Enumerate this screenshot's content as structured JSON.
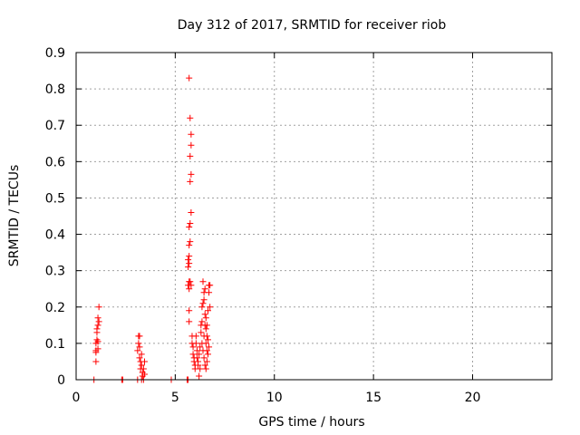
{
  "chart_data": {
    "type": "scatter",
    "title": "Day 312 of 2017, SRMTID for receiver riob",
    "xlabel": "GPS time / hours",
    "ylabel": "SRMTID / TECUs",
    "xlim": [
      0,
      24
    ],
    "ylim": [
      0,
      0.9
    ],
    "xticks": [
      0,
      5,
      10,
      15,
      20
    ],
    "xtick_labels": [
      "0",
      "5",
      "10",
      "15",
      "20"
    ],
    "yticks": [
      0,
      0.1,
      0.2,
      0.3,
      0.4,
      0.5,
      0.6,
      0.7,
      0.8,
      0.9
    ],
    "ytick_labels": [
      "0",
      "0.1",
      "0.2",
      "0.3",
      "0.4",
      "0.5",
      "0.6",
      "0.7",
      "0.8",
      "0.9"
    ],
    "grid": true,
    "marker": "+",
    "marker_color": "#ff0000",
    "series": [
      {
        "points": [
          [
            0.9,
            0.0
          ],
          [
            1.0,
            0.05
          ],
          [
            1.0,
            0.08
          ],
          [
            1.0,
            0.1
          ],
          [
            1.05,
            0.11
          ],
          [
            1.05,
            0.14
          ],
          [
            1.1,
            0.15
          ],
          [
            1.1,
            0.17
          ],
          [
            1.15,
            0.2
          ],
          [
            1.15,
            0.16
          ],
          [
            1.05,
            0.13
          ],
          [
            1.0,
            0.075
          ],
          [
            1.1,
            0.105
          ],
          [
            1.1,
            0.085
          ],
          [
            2.3,
            0.0
          ],
          [
            2.35,
            0.0
          ],
          [
            3.1,
            0.0
          ],
          [
            3.1,
            0.08
          ],
          [
            3.15,
            0.1
          ],
          [
            3.15,
            0.12
          ],
          [
            3.2,
            0.09
          ],
          [
            3.2,
            0.06
          ],
          [
            3.25,
            0.05
          ],
          [
            3.25,
            0.03
          ],
          [
            3.3,
            0.07
          ],
          [
            3.3,
            0.04
          ],
          [
            3.35,
            0.02
          ],
          [
            3.35,
            0.01
          ],
          [
            3.4,
            0.03
          ],
          [
            3.4,
            0.0
          ],
          [
            3.45,
            0.05
          ],
          [
            3.45,
            0.015
          ],
          [
            3.2,
            0.12
          ],
          [
            3.3,
            0.0
          ],
          [
            4.8,
            0.0
          ],
          [
            5.6,
            0.0
          ],
          [
            5.65,
            0.0
          ],
          [
            5.7,
            0.83
          ],
          [
            5.75,
            0.72
          ],
          [
            5.8,
            0.675
          ],
          [
            5.8,
            0.645
          ],
          [
            5.75,
            0.615
          ],
          [
            5.8,
            0.565
          ],
          [
            5.75,
            0.545
          ],
          [
            5.8,
            0.46
          ],
          [
            5.75,
            0.43
          ],
          [
            5.7,
            0.42
          ],
          [
            5.75,
            0.38
          ],
          [
            5.7,
            0.37
          ],
          [
            5.7,
            0.34
          ],
          [
            5.65,
            0.33
          ],
          [
            5.7,
            0.32
          ],
          [
            5.65,
            0.31
          ],
          [
            5.7,
            0.27
          ],
          [
            5.65,
            0.26
          ],
          [
            5.7,
            0.25
          ],
          [
            5.75,
            0.27
          ],
          [
            5.8,
            0.26
          ],
          [
            5.7,
            0.19
          ],
          [
            5.7,
            0.16
          ],
          [
            5.85,
            0.12
          ],
          [
            5.85,
            0.1
          ],
          [
            5.9,
            0.09
          ],
          [
            5.9,
            0.07
          ],
          [
            5.95,
            0.06
          ],
          [
            5.95,
            0.05
          ],
          [
            6.0,
            0.04
          ],
          [
            6.0,
            0.03
          ],
          [
            6.05,
            0.1
          ],
          [
            6.05,
            0.12
          ],
          [
            6.1,
            0.08
          ],
          [
            6.1,
            0.06
          ],
          [
            6.15,
            0.05
          ],
          [
            6.15,
            0.04
          ],
          [
            6.2,
            0.07
          ],
          [
            6.2,
            0.01
          ],
          [
            6.25,
            0.03
          ],
          [
            6.25,
            0.09
          ],
          [
            6.3,
            0.15
          ],
          [
            6.3,
            0.13
          ],
          [
            6.35,
            0.16
          ],
          [
            6.35,
            0.2
          ],
          [
            6.4,
            0.21
          ],
          [
            6.4,
            0.27
          ],
          [
            6.45,
            0.24
          ],
          [
            6.45,
            0.22
          ],
          [
            6.5,
            0.25
          ],
          [
            6.5,
            0.18
          ],
          [
            6.55,
            0.17
          ],
          [
            6.55,
            0.14
          ],
          [
            6.6,
            0.15
          ],
          [
            6.6,
            0.12
          ],
          [
            6.65,
            0.11
          ],
          [
            6.65,
            0.19
          ],
          [
            6.7,
            0.26
          ],
          [
            6.7,
            0.24
          ],
          [
            6.75,
            0.26
          ],
          [
            6.75,
            0.2
          ],
          [
            6.35,
            0.1
          ],
          [
            6.4,
            0.08
          ],
          [
            6.45,
            0.06
          ],
          [
            6.5,
            0.04
          ],
          [
            6.55,
            0.03
          ],
          [
            6.6,
            0.05
          ],
          [
            6.65,
            0.07
          ],
          [
            6.7,
            0.09
          ],
          [
            6.45,
            0.12
          ],
          [
            6.5,
            0.15
          ],
          [
            6.55,
            0.1
          ],
          [
            6.6,
            0.08
          ]
        ]
      }
    ]
  }
}
